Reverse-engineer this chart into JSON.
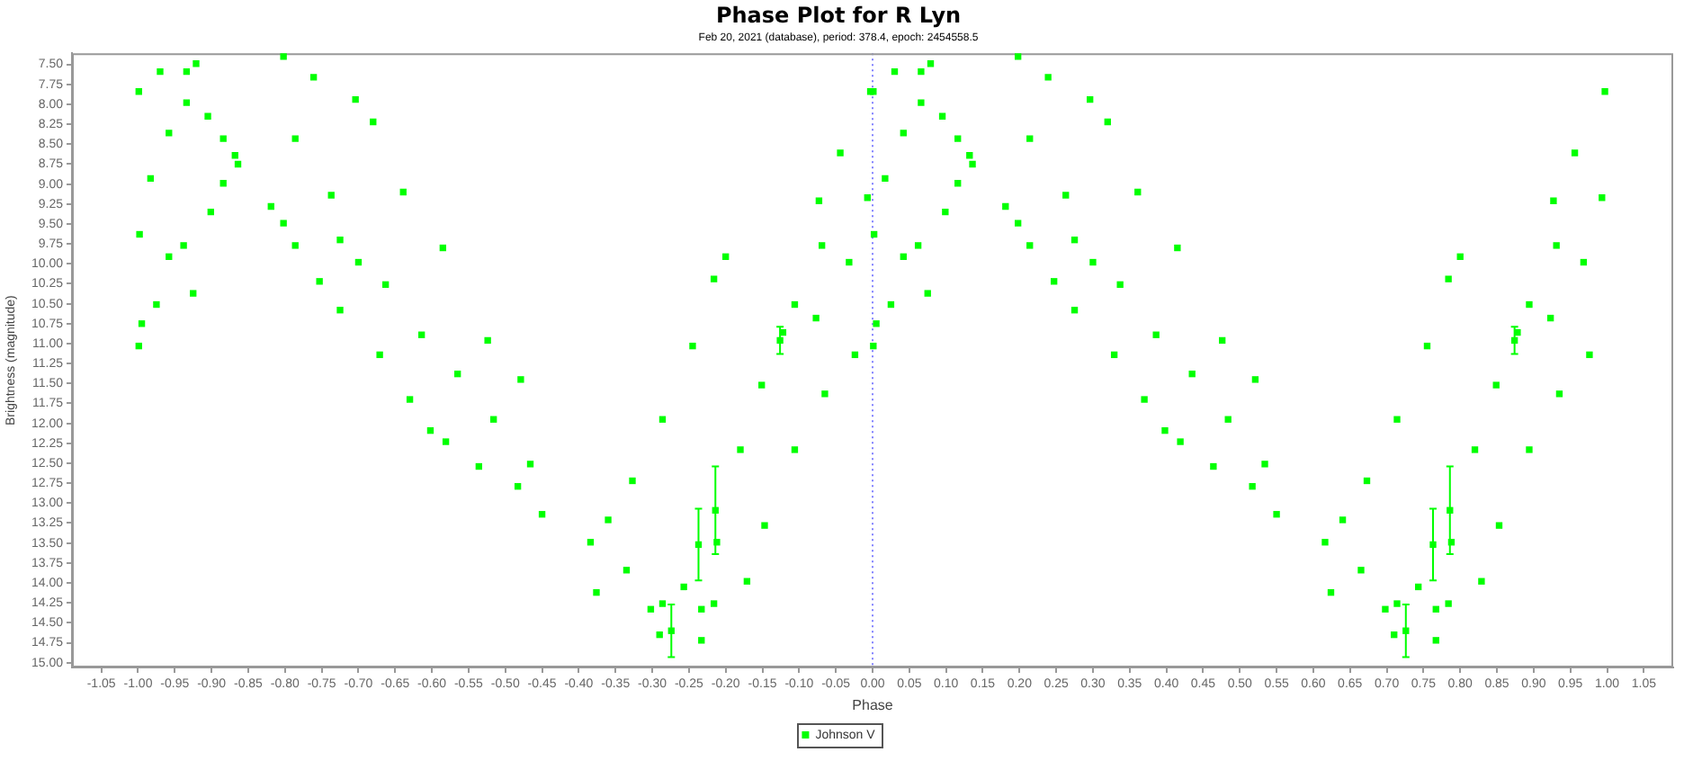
{
  "chart_data": {
    "type": "scatter",
    "title": "Phase Plot for R Lyn",
    "subtitle": "Feb 20, 2021 (database), period: 378.4, epoch: 2454558.5",
    "xlabel": "Phase",
    "ylabel": "Brightness (magnitude)",
    "series": [
      {
        "name": "Johnson V",
        "color": "#00ff00",
        "x": [
          -0.999,
          -0.998,
          -0.999,
          -0.97,
          -0.934,
          -0.921,
          -0.934,
          -0.905,
          -0.884,
          -0.868,
          -0.983,
          -0.958,
          -0.995,
          -0.975,
          -0.958,
          -0.938,
          -0.925,
          -0.901,
          -0.884,
          -0.864,
          -0.802,
          -0.761,
          -0.704,
          -0.68,
          -0.819,
          -0.802,
          -0.786,
          -0.753,
          -0.786,
          -0.737,
          -0.725,
          -0.725,
          -0.671,
          -0.63,
          -0.602,
          -0.581,
          -0.7,
          -0.663,
          -0.614,
          -0.565,
          -0.516,
          -0.466,
          -0.639,
          -0.585,
          -0.524,
          -0.479,
          -0.536,
          -0.483,
          -0.45,
          -0.384,
          -0.376,
          -0.335,
          -0.302,
          -0.29,
          -0.286,
          -0.257,
          -0.233,
          -0.233,
          -0.216,
          -0.171,
          -0.36,
          -0.327,
          -0.286,
          -0.245,
          -0.216,
          -0.2,
          -0.212,
          -0.18,
          -0.151,
          -0.122,
          -0.106,
          -0.069,
          -0.007,
          -0.106,
          -0.065,
          -0.024,
          -0.077,
          -0.032,
          -0.073,
          -0.044,
          -0.003,
          -0.147,
          -0.214,
          -0.274,
          -0.237,
          -0.126,
          0.001,
          0.002,
          0.001,
          0.03,
          0.066,
          0.079,
          0.066,
          0.095,
          0.116,
          0.132,
          0.017,
          0.042,
          0.005,
          0.025,
          0.042,
          0.062,
          0.075,
          0.099,
          0.116,
          0.136,
          0.198,
          0.239,
          0.296,
          0.32,
          0.181,
          0.198,
          0.214,
          0.247,
          0.214,
          0.263,
          0.275,
          0.275,
          0.329,
          0.37,
          0.398,
          0.419,
          0.3,
          0.337,
          0.386,
          0.435,
          0.484,
          0.534,
          0.361,
          0.415,
          0.476,
          0.521,
          0.464,
          0.517,
          0.55,
          0.616,
          0.624,
          0.665,
          0.698,
          0.71,
          0.714,
          0.743,
          0.767,
          0.767,
          0.784,
          0.829,
          0.64,
          0.673,
          0.714,
          0.755,
          0.784,
          0.8,
          0.788,
          0.82,
          0.849,
          0.878,
          0.894,
          0.931,
          0.993,
          0.894,
          0.935,
          0.976,
          0.923,
          0.968,
          0.927,
          0.956,
          0.997,
          0.853,
          0.786,
          0.726,
          0.763,
          0.874
        ],
        "values": [
          7.84,
          9.63,
          11.03,
          7.59,
          7.59,
          7.49,
          7.98,
          8.15,
          8.43,
          8.64,
          8.93,
          8.36,
          10.75,
          10.51,
          9.91,
          9.77,
          10.37,
          9.35,
          8.99,
          8.75,
          7.4,
          7.66,
          7.94,
          8.22,
          9.28,
          9.49,
          9.77,
          10.22,
          8.43,
          9.14,
          9.7,
          10.58,
          11.14,
          11.7,
          12.09,
          12.23,
          9.98,
          10.26,
          10.89,
          11.38,
          11.95,
          12.51,
          9.1,
          9.8,
          10.96,
          11.45,
          12.54,
          12.79,
          13.14,
          13.49,
          14.12,
          13.84,
          14.33,
          14.65,
          14.26,
          14.05,
          14.33,
          14.72,
          14.26,
          13.98,
          13.21,
          12.72,
          11.95,
          11.03,
          10.19,
          9.91,
          13.49,
          12.33,
          11.52,
          10.86,
          10.51,
          9.77,
          9.17,
          12.33,
          11.63,
          11.14,
          10.68,
          9.98,
          9.21,
          8.61,
          7.84,
          13.28,
          13.09,
          14.6,
          13.52,
          10.96,
          7.84,
          9.63,
          11.03,
          7.59,
          7.59,
          7.49,
          7.98,
          8.15,
          8.43,
          8.64,
          8.93,
          8.36,
          10.75,
          10.51,
          9.91,
          9.77,
          10.37,
          9.35,
          8.99,
          8.75,
          7.4,
          7.66,
          7.94,
          8.22,
          9.28,
          9.49,
          9.77,
          10.22,
          8.43,
          9.14,
          9.7,
          10.58,
          11.14,
          11.7,
          12.09,
          12.23,
          9.98,
          10.26,
          10.89,
          11.38,
          11.95,
          12.51,
          9.1,
          9.8,
          10.96,
          11.45,
          12.54,
          12.79,
          13.14,
          13.49,
          14.12,
          13.84,
          14.33,
          14.65,
          14.26,
          14.05,
          14.33,
          14.72,
          14.26,
          13.98,
          13.21,
          12.72,
          11.95,
          11.03,
          10.19,
          9.91,
          13.49,
          12.33,
          11.52,
          10.86,
          10.51,
          9.77,
          9.17,
          12.33,
          11.63,
          11.14,
          10.68,
          9.98,
          9.21,
          8.61,
          7.84,
          13.28,
          13.09,
          14.6,
          13.52,
          10.96
        ],
        "errors": [
          null,
          null,
          null,
          null,
          null,
          null,
          null,
          null,
          null,
          null,
          null,
          null,
          null,
          null,
          null,
          null,
          null,
          null,
          null,
          null,
          null,
          null,
          null,
          null,
          null,
          null,
          null,
          null,
          null,
          null,
          null,
          null,
          null,
          null,
          null,
          null,
          null,
          null,
          null,
          null,
          null,
          null,
          null,
          null,
          null,
          null,
          null,
          null,
          null,
          null,
          null,
          null,
          null,
          null,
          null,
          null,
          null,
          null,
          null,
          null,
          null,
          null,
          null,
          null,
          null,
          null,
          null,
          null,
          null,
          null,
          null,
          null,
          null,
          null,
          null,
          null,
          null,
          null,
          null,
          null,
          null,
          null,
          0.55,
          0.33,
          0.45,
          0.17,
          null,
          null,
          null,
          null,
          null,
          null,
          null,
          null,
          null,
          null,
          null,
          null,
          null,
          null,
          null,
          null,
          null,
          null,
          null,
          null,
          null,
          null,
          null,
          null,
          null,
          null,
          null,
          null,
          null,
          null,
          null,
          null,
          null,
          null,
          null,
          null,
          null,
          null,
          null,
          null,
          null,
          null,
          null,
          null,
          null,
          null,
          null,
          null,
          null,
          null,
          null,
          null,
          null,
          null,
          null,
          null,
          null,
          null,
          null,
          null,
          null,
          null,
          null,
          null,
          null,
          null,
          null,
          null,
          null,
          null,
          null,
          null,
          null,
          null,
          null,
          null,
          null,
          null,
          null,
          null,
          null,
          null,
          0.55,
          0.33,
          0.45,
          0.17
        ]
      }
    ],
    "xlim": [
      -1.09,
      1.09
    ],
    "ylim": [
      15.06,
      7.36
    ],
    "xticks": [
      {
        "value": -1.05,
        "label": "-1.05"
      },
      {
        "value": -1.0,
        "label": "-1.00"
      },
      {
        "value": -0.95,
        "label": "-0.95"
      },
      {
        "value": -0.9,
        "label": "-0.90"
      },
      {
        "value": -0.85,
        "label": "-0.85"
      },
      {
        "value": -0.8,
        "label": "-0.80"
      },
      {
        "value": -0.75,
        "label": "-0.75"
      },
      {
        "value": -0.7,
        "label": "-0.70"
      },
      {
        "value": -0.65,
        "label": "-0.65"
      },
      {
        "value": -0.6,
        "label": "-0.60"
      },
      {
        "value": -0.55,
        "label": "-0.55"
      },
      {
        "value": -0.5,
        "label": "-0.50"
      },
      {
        "value": -0.45,
        "label": "-0.45"
      },
      {
        "value": -0.4,
        "label": "-0.40"
      },
      {
        "value": -0.35,
        "label": "-0.35"
      },
      {
        "value": -0.3,
        "label": "-0.30"
      },
      {
        "value": -0.25,
        "label": "-0.25"
      },
      {
        "value": -0.2,
        "label": "-0.20"
      },
      {
        "value": -0.15,
        "label": "-0.15"
      },
      {
        "value": -0.1,
        "label": "-0.10"
      },
      {
        "value": -0.05,
        "label": "-0.05"
      },
      {
        "value": 0,
        "label": "0.00"
      },
      {
        "value": 0.05,
        "label": "0.05"
      },
      {
        "value": 0.1,
        "label": "0.10"
      },
      {
        "value": 0.15,
        "label": "0.15"
      },
      {
        "value": 0.2,
        "label": "0.20"
      },
      {
        "value": 0.25,
        "label": "0.25"
      },
      {
        "value": 0.3,
        "label": "0.30"
      },
      {
        "value": 0.35,
        "label": "0.35"
      },
      {
        "value": 0.4,
        "label": "0.40"
      },
      {
        "value": 0.45,
        "label": "0.45"
      },
      {
        "value": 0.5,
        "label": "0.50"
      },
      {
        "value": 0.55,
        "label": "0.55"
      },
      {
        "value": 0.6,
        "label": "0.60"
      },
      {
        "value": 0.65,
        "label": "0.65"
      },
      {
        "value": 0.7,
        "label": "0.70"
      },
      {
        "value": 0.75,
        "label": "0.75"
      },
      {
        "value": 0.8,
        "label": "0.80"
      },
      {
        "value": 0.85,
        "label": "0.85"
      },
      {
        "value": 0.9,
        "label": "0.90"
      },
      {
        "value": 0.95,
        "label": "0.95"
      },
      {
        "value": 1.0,
        "label": "1.00"
      },
      {
        "value": 1.05,
        "label": "1.05"
      }
    ],
    "yticks": [
      {
        "value": 7.5,
        "label": "7.50"
      },
      {
        "value": 7.75,
        "label": "7.75"
      },
      {
        "value": 8.0,
        "label": "8.00"
      },
      {
        "value": 8.25,
        "label": "8.25"
      },
      {
        "value": 8.5,
        "label": "8.50"
      },
      {
        "value": 8.75,
        "label": "8.75"
      },
      {
        "value": 9.0,
        "label": "9.00"
      },
      {
        "value": 9.25,
        "label": "9.25"
      },
      {
        "value": 9.5,
        "label": "9.50"
      },
      {
        "value": 9.75,
        "label": "9.75"
      },
      {
        "value": 10.0,
        "label": "10.00"
      },
      {
        "value": 10.25,
        "label": "10.25"
      },
      {
        "value": 10.5,
        "label": "10.50"
      },
      {
        "value": 10.75,
        "label": "10.75"
      },
      {
        "value": 11.0,
        "label": "11.00"
      },
      {
        "value": 11.25,
        "label": "11.25"
      },
      {
        "value": 11.5,
        "label": "11.50"
      },
      {
        "value": 11.75,
        "label": "11.75"
      },
      {
        "value": 12.0,
        "label": "12.00"
      },
      {
        "value": 12.25,
        "label": "12.25"
      },
      {
        "value": 12.5,
        "label": "12.50"
      },
      {
        "value": 12.75,
        "label": "12.75"
      },
      {
        "value": 13.0,
        "label": "13.00"
      },
      {
        "value": 13.25,
        "label": "13.25"
      },
      {
        "value": 13.5,
        "label": "13.50"
      },
      {
        "value": 13.75,
        "label": "13.75"
      },
      {
        "value": 14.0,
        "label": "14.00"
      },
      {
        "value": 14.25,
        "label": "14.25"
      },
      {
        "value": 14.5,
        "label": "14.50"
      },
      {
        "value": 14.75,
        "label": "14.75"
      },
      {
        "value": 15.0,
        "label": "15.00"
      }
    ],
    "ref_lines": [
      {
        "axis": "x",
        "value": 0,
        "color": "#8080ff",
        "line_style": "dotted"
      }
    ],
    "legend": "bottom",
    "marker": "square"
  }
}
